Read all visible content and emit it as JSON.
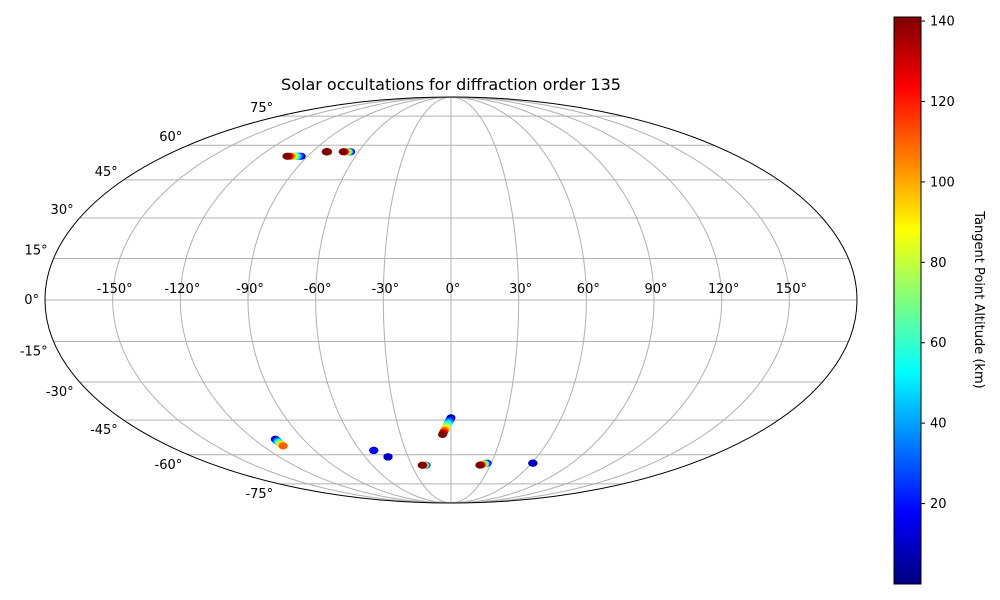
{
  "chart_data": {
    "type": "scatter",
    "projection": "mollweide",
    "title": "Solar occultations for diffraction order 135",
    "grid": true,
    "longitude_ticks": [
      "-150°",
      "-120°",
      "-90°",
      "-60°",
      "-30°",
      "0°",
      "30°",
      "60°",
      "90°",
      "120°",
      "150°"
    ],
    "longitude_values": [
      -150,
      -120,
      -90,
      -60,
      -30,
      0,
      30,
      60,
      90,
      120,
      150
    ],
    "latitude_ticks": [
      "75°",
      "60°",
      "45°",
      "30°",
      "15°",
      "0°",
      "-15°",
      "-30°",
      "-45°",
      "-60°",
      "-75°"
    ],
    "latitude_values": [
      75,
      60,
      45,
      30,
      15,
      0,
      -15,
      -30,
      -45,
      -60,
      -75
    ],
    "colorbar": {
      "label": "Tangent Point Altitude (km)",
      "colormap": "jet",
      "range": [
        0,
        141
      ],
      "tick_labels": [
        "20",
        "40",
        "60",
        "80",
        "100",
        "120",
        "140"
      ],
      "tick_values": [
        20,
        40,
        60,
        80,
        100,
        120,
        140
      ],
      "jet_stops": [
        "#00007f",
        "#0000ff",
        "#007fff",
        "#00ffff",
        "#7fff7f",
        "#ffff00",
        "#ff7f00",
        "#ff0000",
        "#7f0000"
      ]
    },
    "series": [
      {
        "lon_range": [
          -103,
          -94
        ],
        "lat_range": [
          55,
          55
        ],
        "alt_range": [
          2,
          141
        ]
      },
      {
        "lon_range": [
          -81,
          -80
        ],
        "lat_range": [
          57,
          57
        ],
        "alt_range": [
          130,
          141
        ]
      },
      {
        "lon_range": [
          -70,
          -65
        ],
        "lat_range": [
          57,
          57
        ],
        "alt_range": [
          2,
          141
        ]
      },
      {
        "lon_range": [
          -107,
          -107
        ],
        "lat_range": [
          -54,
          -54
        ],
        "alt_range": [
          2,
          30
        ]
      },
      {
        "lon_range": [
          -107,
          -107
        ],
        "lat_range": [
          -56,
          -53
        ],
        "alt_range": [
          2,
          110
        ]
      },
      {
        "lon_range": [
          -51,
          -51
        ],
        "lat_range": [
          -58,
          -58
        ],
        "alt_range": [
          2,
          15
        ]
      },
      {
        "lon_range": [
          -44,
          -44
        ],
        "lat_range": [
          -61,
          -61
        ],
        "alt_range": [
          2,
          10
        ]
      },
      {
        "lon_range": [
          -22,
          -19
        ],
        "lat_range": [
          -65,
          -65
        ],
        "alt_range": [
          2,
          141
        ]
      },
      {
        "lon_range": [
          -5,
          0
        ],
        "lat_range": [
          -51,
          -44
        ],
        "alt_range": [
          2,
          141
        ]
      },
      {
        "lon_range": [
          22,
          27
        ],
        "lat_range": [
          -65,
          -64
        ],
        "alt_range": [
          2,
          141
        ]
      },
      {
        "lon_range": [
          61,
          61
        ],
        "lat_range": [
          -64,
          -64
        ],
        "alt_range": [
          2,
          8
        ]
      }
    ]
  }
}
